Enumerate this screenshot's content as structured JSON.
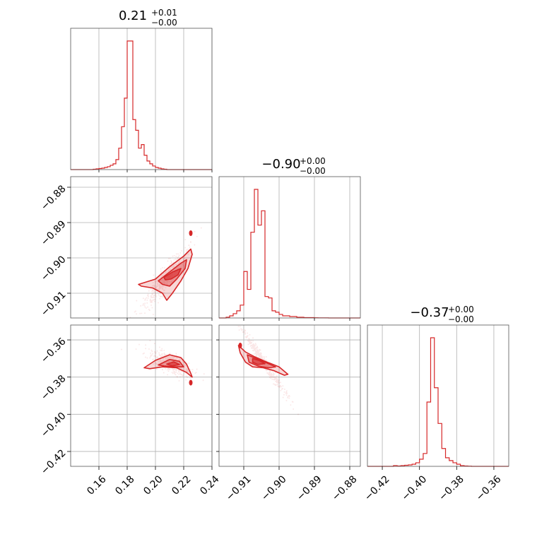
{
  "chart_data": {
    "type": "corner",
    "color": "#d62728",
    "parameters": [
      {
        "title_value": "0.21",
        "title_plus": "+0.01",
        "title_minus": "−0.00",
        "range": [
          0.14,
          0.24
        ],
        "ticks": [
          0.16,
          0.18,
          0.2,
          0.22,
          0.24
        ],
        "tick_labels": [
          "0.16",
          "0.18",
          "0.20",
          "0.22",
          "0.24"
        ],
        "hist": {
          "edges_start": 0.14,
          "bin_width": 0.002,
          "counts": [
            0,
            0,
            0,
            0,
            0,
            0,
            0,
            0,
            0.5,
            1,
            1.5,
            2,
            3,
            4,
            6,
            8,
            14,
            30,
            60,
            100,
            180,
            180,
            70,
            55,
            30,
            35,
            20,
            12,
            8,
            5,
            3,
            2,
            1,
            0.5,
            0,
            0,
            0,
            0,
            0,
            0,
            0,
            0,
            0,
            0,
            0,
            0,
            0,
            0,
            0,
            0
          ]
        }
      },
      {
        "title_value": "−0.90",
        "title_plus": "+0.00",
        "title_minus": "−0.00",
        "range": [
          -0.917,
          -0.877
        ],
        "ticks": [
          -0.91,
          -0.9,
          -0.89,
          -0.88
        ],
        "tick_labels": [
          "−0.91",
          "−0.90",
          "−0.89",
          "−0.88"
        ],
        "hist": {
          "edges_start": -0.917,
          "bin_width": 0.001,
          "counts": [
            0,
            0,
            1,
            3,
            6,
            10,
            18,
            65,
            40,
            120,
            180,
            130,
            150,
            30,
            28,
            10,
            8,
            5,
            3,
            3,
            2,
            2,
            1,
            1,
            0.5,
            0.5,
            0.5,
            0.3,
            0.2,
            0.2,
            0.1,
            0,
            0,
            0,
            0,
            0,
            0,
            0,
            0,
            0
          ]
        }
      },
      {
        "title_value": "−0.37",
        "title_plus": "+0.00",
        "title_minus": "−0.00",
        "range": [
          -0.428,
          -0.352
        ],
        "ticks": [
          -0.42,
          -0.4,
          -0.38,
          -0.36
        ],
        "tick_labels": [
          "−0.42",
          "−0.40",
          "−0.38",
          "−0.36"
        ],
        "hist": {
          "edges_start": -0.428,
          "bin_width": 0.002,
          "counts": [
            0,
            0,
            0,
            0,
            0,
            0,
            0,
            1,
            0.5,
            1,
            1.5,
            2,
            3,
            5,
            10,
            18,
            90,
            180,
            110,
            60,
            25,
            12,
            8,
            5,
            3,
            1,
            0.5,
            0.3,
            0,
            0,
            0,
            0,
            0,
            0,
            0,
            0,
            0,
            0
          ]
        }
      }
    ],
    "pairs": [
      {
        "row": 1,
        "col": 0,
        "trend": {
          "x0": 0.205,
          "y0": -0.9065,
          "slope": 0.5,
          "sx": 0.006,
          "sy": 0.0018
        },
        "contours": [
          [
            [
              0.188,
              -0.9075
            ],
            [
              0.2,
              -0.906
            ],
            [
              0.21,
              -0.9025
            ],
            [
              0.22,
              -0.8995
            ],
            [
              0.225,
              -0.8975
            ],
            [
              0.226,
              -0.899
            ],
            [
              0.223,
              -0.903
            ],
            [
              0.218,
              -0.9065
            ],
            [
              0.212,
              -0.91
            ],
            [
              0.208,
              -0.912
            ],
            [
              0.205,
              -0.91
            ],
            [
              0.198,
              -0.9085
            ],
            [
              0.19,
              -0.908
            ]
          ],
          [
            [
              0.202,
              -0.9065
            ],
            [
              0.21,
              -0.904
            ],
            [
              0.218,
              -0.9015
            ],
            [
              0.222,
              -0.9005
            ],
            [
              0.221,
              -0.903
            ],
            [
              0.215,
              -0.906
            ],
            [
              0.21,
              -0.908
            ],
            [
              0.205,
              -0.9075
            ]
          ],
          [
            [
              0.206,
              -0.9055
            ],
            [
              0.212,
              -0.904
            ],
            [
              0.218,
              -0.903
            ],
            [
              0.216,
              -0.9048
            ],
            [
              0.211,
              -0.906
            ],
            [
              0.207,
              -0.9062
            ]
          ]
        ],
        "hotspot": [
          0.225,
          -0.893
        ]
      },
      {
        "row": 2,
        "col": 0,
        "trend": {
          "x0": 0.21,
          "y0": -0.372,
          "slope": -0.3,
          "sx": 0.006,
          "sy": 0.0028
        },
        "contours": [
          [
            [
              0.192,
              -0.375
            ],
            [
              0.2,
              -0.371
            ],
            [
              0.21,
              -0.368
            ],
            [
              0.218,
              -0.3695
            ],
            [
              0.222,
              -0.373
            ],
            [
              0.225,
              -0.378
            ],
            [
              0.226,
              -0.38
            ],
            [
              0.222,
              -0.3775
            ],
            [
              0.215,
              -0.375
            ],
            [
              0.205,
              -0.3745
            ],
            [
              0.196,
              -0.3755
            ]
          ],
          [
            [
              0.202,
              -0.3735
            ],
            [
              0.21,
              -0.3705
            ],
            [
              0.217,
              -0.3715
            ],
            [
              0.22,
              -0.3745
            ],
            [
              0.214,
              -0.3745
            ],
            [
              0.206,
              -0.374
            ]
          ],
          [
            [
              0.208,
              -0.373
            ],
            [
              0.213,
              -0.3718
            ],
            [
              0.217,
              -0.3732
            ],
            [
              0.212,
              -0.374
            ]
          ]
        ],
        "hotspot": [
          0.225,
          -0.383
        ]
      },
      {
        "row": 2,
        "col": 1,
        "trend": {
          "x0": -0.9045,
          "y0": -0.372,
          "slope": -2.8,
          "sx": 0.0025,
          "sy": 0.0015
        },
        "contours": [
          [
            [
              -0.9115,
              -0.363
            ],
            [
              -0.9095,
              -0.3665
            ],
            [
              -0.907,
              -0.369
            ],
            [
              -0.904,
              -0.3715
            ],
            [
              -0.9,
              -0.3745
            ],
            [
              -0.8975,
              -0.3785
            ],
            [
              -0.8985,
              -0.379
            ],
            [
              -0.9015,
              -0.3765
            ],
            [
              -0.9045,
              -0.375
            ],
            [
              -0.9075,
              -0.3745
            ],
            [
              -0.9095,
              -0.372
            ],
            [
              -0.911,
              -0.367
            ]
          ],
          [
            [
              -0.909,
              -0.368
            ],
            [
              -0.9065,
              -0.37
            ],
            [
              -0.904,
              -0.372
            ],
            [
              -0.901,
              -0.3745
            ],
            [
              -0.903,
              -0.375
            ],
            [
              -0.906,
              -0.374
            ],
            [
              -0.9085,
              -0.372
            ]
          ],
          [
            [
              -0.9075,
              -0.37
            ],
            [
              -0.9055,
              -0.3712
            ],
            [
              -0.904,
              -0.3728
            ],
            [
              -0.906,
              -0.3732
            ],
            [
              -0.9075,
              -0.372
            ]
          ]
        ],
        "hotspot": [
          -0.911,
          -0.363
        ]
      }
    ],
    "grid": true
  }
}
